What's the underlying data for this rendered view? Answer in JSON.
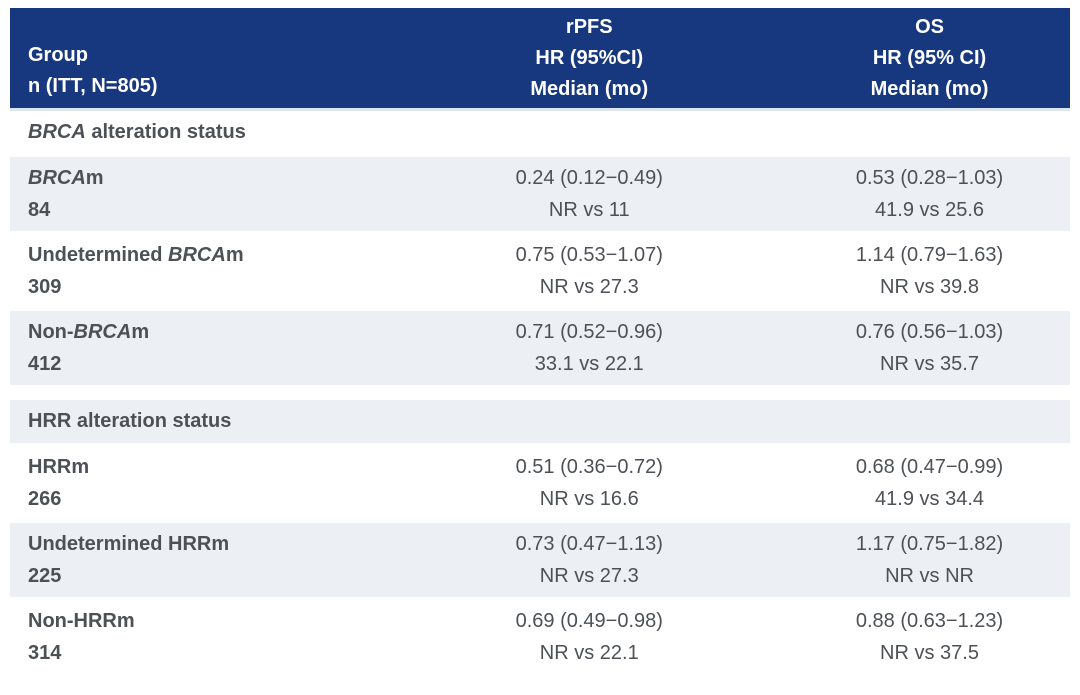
{
  "colors": {
    "header_bg": "#17387E",
    "row_shade": "#ECEFF3",
    "divider": "#DDE5F2",
    "text": "#4D5156"
  },
  "table": {
    "header": {
      "group_line1": "Group",
      "group_line2": "n (ITT, N=805)",
      "rpfs_line1": "rPFS",
      "rpfs_line2": "HR (95%CI)",
      "rpfs_line3": "Median (mo)",
      "os_line1": "OS",
      "os_line2": "HR (95% CI)",
      "os_line3": "Median (mo)"
    },
    "sections": [
      {
        "title_em": "BRCA",
        "title_rest": " alteration status",
        "rows": [
          {
            "label_pre": "",
            "label_em": "BRCA",
            "label_rest": "m",
            "n": "84",
            "rpfs_hr": "0.24 (0.12−0.49)",
            "rpfs_median": "NR vs 11",
            "os_hr": "0.53 (0.28−1.03)",
            "os_median": "41.9 vs 25.6"
          },
          {
            "label_pre": "Undetermined ",
            "label_em": "BRCA",
            "label_rest": "m",
            "n": "309",
            "rpfs_hr": "0.75 (0.53−1.07)",
            "rpfs_median": "NR vs 27.3",
            "os_hr": "1.14 (0.79−1.63)",
            "os_median": "NR vs 39.8"
          },
          {
            "label_pre": "Non-",
            "label_em": "BRCA",
            "label_rest": "m",
            "n": "412",
            "rpfs_hr": "0.71 (0.52−0.96)",
            "rpfs_median": "33.1 vs 22.1",
            "os_hr": "0.76 (0.56−1.03)",
            "os_median": "NR vs 35.7"
          }
        ]
      },
      {
        "title_em": "",
        "title_rest": "HRR alteration status",
        "rows": [
          {
            "label_pre": "HRRm",
            "label_em": "",
            "label_rest": "",
            "n": "266",
            "rpfs_hr": "0.51 (0.36−0.72)",
            "rpfs_median": "NR vs 16.6",
            "os_hr": "0.68 (0.47−0.99)",
            "os_median": "41.9 vs 34.4"
          },
          {
            "label_pre": "Undetermined HRRm",
            "label_em": "",
            "label_rest": "",
            "n": "225",
            "rpfs_hr": "0.73 (0.47−1.13)",
            "rpfs_median": "NR vs 27.3",
            "os_hr": "1.17 (0.75−1.82)",
            "os_median": "NR vs NR"
          },
          {
            "label_pre": "Non-HRRm",
            "label_em": "",
            "label_rest": "",
            "n": "314",
            "rpfs_hr": "0.69 (0.49−0.98)",
            "rpfs_median": "NR vs 22.1",
            "os_hr": "0.88 (0.63−1.23)",
            "os_median": "NR vs 37.5"
          }
        ]
      }
    ]
  }
}
